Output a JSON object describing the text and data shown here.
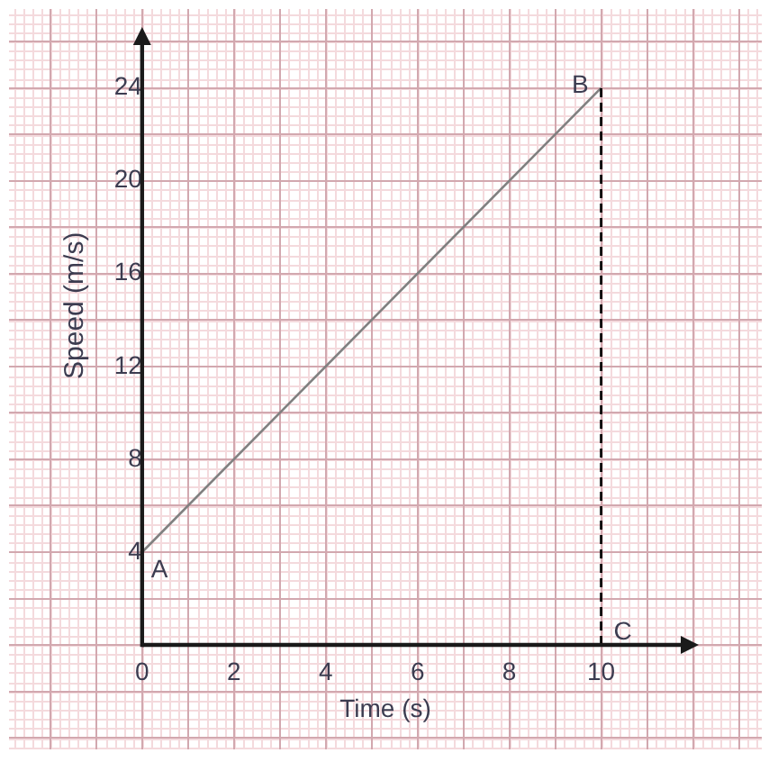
{
  "chart_data": {
    "type": "line",
    "xlabel": "Time (s)",
    "ylabel": "Speed (m/s)",
    "x": [
      0,
      10
    ],
    "series": [
      {
        "values": [
          4,
          24
        ],
        "color": "#808080"
      }
    ],
    "ref_lines": [
      {
        "axis": "x",
        "value": 10,
        "label": "C",
        "color": "#000000",
        "line_style": "dashed"
      }
    ],
    "xlim": [
      -2.9,
      13.5
    ],
    "ylim": [
      -4.5,
      27.4
    ],
    "xticks": [
      {
        "value": -2,
        "label": null
      },
      {
        "value": -1,
        "label": null
      },
      0,
      {
        "value": 1,
        "label": null
      },
      2,
      {
        "value": 3,
        "label": null
      },
      4,
      {
        "value": 5,
        "label": null
      },
      6,
      {
        "value": 7,
        "label": null
      },
      8,
      {
        "value": 9,
        "label": null
      },
      10,
      {
        "value": 11,
        "label": null
      },
      {
        "value": 12,
        "label": null
      },
      {
        "value": 13,
        "label": null
      }
    ],
    "yticks": [
      {
        "value": -4,
        "label": null
      },
      {
        "value": -2,
        "label": null
      },
      {
        "value": 0,
        "label": null
      },
      {
        "value": 2,
        "label": null
      },
      4,
      {
        "value": 6,
        "label": null
      },
      8,
      {
        "value": 10,
        "label": null
      },
      12,
      {
        "value": 14,
        "label": null
      },
      16,
      {
        "value": 18,
        "label": null
      },
      20,
      {
        "value": 22,
        "label": null
      },
      24,
      {
        "value": 26,
        "label": null
      }
    ],
    "grid": true,
    "line_style": "solid",
    "annotations": [
      {
        "text": "B",
        "x": 10,
        "y": 24
      },
      {
        "text": "A",
        "x": 0,
        "y": 4
      }
    ]
  }
}
